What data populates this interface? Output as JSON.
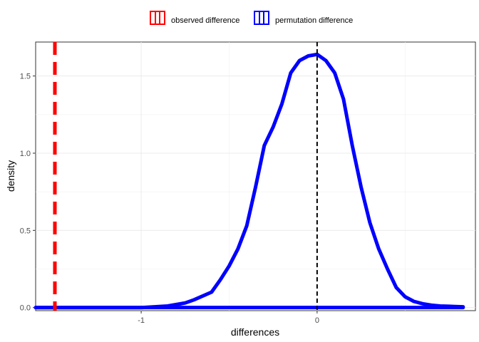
{
  "chart_data": {
    "type": "line",
    "xlabel": "differences",
    "ylabel": "density",
    "xlim": [
      -1.6,
      0.9
    ],
    "ylim": [
      -0.02,
      1.72
    ],
    "x_ticks": [
      -1,
      0
    ],
    "x_tick_labels": [
      "-1",
      "0"
    ],
    "y_ticks": [
      0.0,
      0.5,
      1.0,
      1.5
    ],
    "y_tick_labels": [
      "0.0",
      "0.5",
      "1.0",
      "1.5"
    ],
    "grid": true,
    "legend_position": "top",
    "legend": [
      {
        "label": "observed difference",
        "color": "#ff0000"
      },
      {
        "label": "permutation difference",
        "color": "#0000ff"
      }
    ],
    "series": [
      {
        "name": "permutation difference",
        "color": "#0000ff",
        "x": [
          -1.6,
          -1.0,
          -0.85,
          -0.75,
          -0.7,
          -0.6,
          -0.55,
          -0.5,
          -0.45,
          -0.4,
          -0.35,
          -0.3,
          -0.25,
          -0.2,
          -0.15,
          -0.1,
          -0.05,
          0.0,
          0.05,
          0.1,
          0.15,
          0.2,
          0.25,
          0.3,
          0.35,
          0.4,
          0.45,
          0.5,
          0.55,
          0.6,
          0.65,
          0.7,
          0.75,
          0.83
        ],
        "y": [
          0.0,
          0.0,
          0.01,
          0.03,
          0.05,
          0.1,
          0.18,
          0.27,
          0.38,
          0.53,
          0.78,
          1.05,
          1.17,
          1.32,
          1.52,
          1.6,
          1.63,
          1.64,
          1.6,
          1.52,
          1.35,
          1.05,
          0.78,
          0.55,
          0.38,
          0.25,
          0.13,
          0.07,
          0.04,
          0.025,
          0.015,
          0.01,
          0.008,
          0.005
        ]
      }
    ],
    "baseline": {
      "x": [
        -1.6,
        0.83
      ],
      "y": [
        0.0,
        0.0
      ],
      "color": "#0000ff"
    },
    "vlines": [
      {
        "name": "observed difference",
        "x": -1.6,
        "color": "#ff0000",
        "style": "dashed"
      },
      {
        "name": "zero",
        "x": 0.0,
        "color": "#000000",
        "style": "dashed"
      }
    ]
  }
}
